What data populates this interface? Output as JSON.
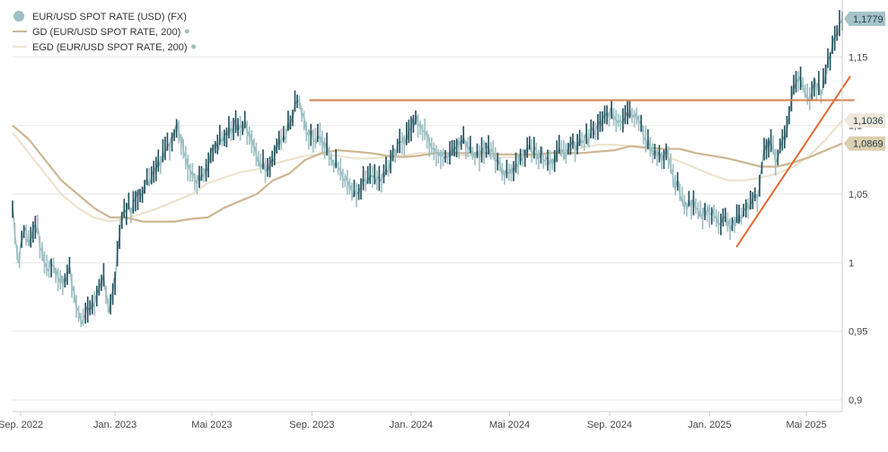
{
  "legend": {
    "items": [
      {
        "label": "EUR/USD SPOT RATE (USD) (FX)",
        "color": "#9dbfc3",
        "marker": "circle"
      },
      {
        "label": "GD (EUR/USD SPOT RATE, 200)",
        "color": "#cdb793",
        "marker": "line",
        "dot_color": "#9dbfc3"
      },
      {
        "label": "EGD (EUR/USD SPOT RATE, 200)",
        "color": "#ece4cf",
        "marker": "line",
        "dot_color": "#9dbfc3"
      }
    ]
  },
  "badges": [
    {
      "label": "1,1779",
      "value": 1.1779,
      "bg": "#a6c4c8",
      "fg": "#1d3b45"
    },
    {
      "label": "1,1036",
      "value": 1.1036,
      "bg": "#efe9da",
      "fg": "#1d3b45"
    },
    {
      "label": "1,0869",
      "value": 1.0869,
      "bg": "#dccfb0",
      "fg": "#1d3b45"
    }
  ],
  "chart_data": {
    "type": "line",
    "xlabel": "",
    "ylabel": "",
    "ylim": [
      0.9,
      1.185
    ],
    "grid": true,
    "legend_position": "top-left",
    "y_ticks": [
      {
        "label": "0,9",
        "value": 0.9
      },
      {
        "label": "0,95",
        "value": 0.95
      },
      {
        "label": "1",
        "value": 1.0
      },
      {
        "label": "1,05",
        "value": 1.05
      },
      {
        "label": "1,1",
        "value": 1.1
      },
      {
        "label": "1,15",
        "value": 1.15
      }
    ],
    "x_ticks": [
      {
        "label": "Sep. 2022",
        "t": 10
      },
      {
        "label": "Jan. 2023",
        "t": 126
      },
      {
        "label": "Mai 2023",
        "t": 245
      },
      {
        "label": "Sep. 2023",
        "t": 368
      },
      {
        "label": "Jan. 2024",
        "t": 490
      },
      {
        "label": "Mai 2024",
        "t": 611
      },
      {
        "label": "Sep. 2024",
        "t": 734
      },
      {
        "label": "Jan. 2025",
        "t": 857
      },
      {
        "label": "Mai 2025",
        "t": 976
      }
    ],
    "x_range": [
      0,
      1020
    ],
    "series": [
      {
        "color": "#9dbfc3",
        "dark_color": "#1f4f5c",
        "points": [
          [
            0,
            1.04
          ],
          [
            7,
            1.0
          ],
          [
            14,
            1.025
          ],
          [
            21,
            1.015
          ],
          [
            28,
            1.03
          ],
          [
            35,
            1.01
          ],
          [
            42,
            0.995
          ],
          [
            49,
            1.0
          ],
          [
            56,
            0.99
          ],
          [
            63,
            0.985
          ],
          [
            70,
            0.995
          ],
          [
            77,
            0.975
          ],
          [
            84,
            0.955
          ],
          [
            91,
            0.965
          ],
          [
            98,
            0.97
          ],
          [
            105,
            0.975
          ],
          [
            112,
            0.99
          ],
          [
            119,
            0.965
          ],
          [
            126,
            0.99
          ],
          [
            133,
            1.03
          ],
          [
            140,
            1.04
          ],
          [
            147,
            1.04
          ],
          [
            154,
            1.05
          ],
          [
            161,
            1.055
          ],
          [
            168,
            1.06
          ],
          [
            175,
            1.07
          ],
          [
            182,
            1.075
          ],
          [
            189,
            1.085
          ],
          [
            196,
            1.09
          ],
          [
            203,
            1.1
          ],
          [
            210,
            1.085
          ],
          [
            217,
            1.07
          ],
          [
            224,
            1.06
          ],
          [
            231,
            1.06
          ],
          [
            238,
            1.065
          ],
          [
            245,
            1.08
          ],
          [
            252,
            1.085
          ],
          [
            259,
            1.09
          ],
          [
            266,
            1.095
          ],
          [
            273,
            1.1
          ],
          [
            280,
            1.1
          ],
          [
            287,
            1.1
          ],
          [
            294,
            1.09
          ],
          [
            301,
            1.075
          ],
          [
            308,
            1.07
          ],
          [
            315,
            1.07
          ],
          [
            322,
            1.08
          ],
          [
            329,
            1.09
          ],
          [
            336,
            1.095
          ],
          [
            343,
            1.105
          ],
          [
            350,
            1.12
          ],
          [
            357,
            1.105
          ],
          [
            364,
            1.095
          ],
          [
            371,
            1.09
          ],
          [
            378,
            1.09
          ],
          [
            385,
            1.085
          ],
          [
            392,
            1.075
          ],
          [
            399,
            1.07
          ],
          [
            406,
            1.065
          ],
          [
            413,
            1.055
          ],
          [
            420,
            1.05
          ],
          [
            427,
            1.055
          ],
          [
            434,
            1.06
          ],
          [
            441,
            1.065
          ],
          [
            448,
            1.06
          ],
          [
            455,
            1.065
          ],
          [
            462,
            1.07
          ],
          [
            469,
            1.08
          ],
          [
            476,
            1.085
          ],
          [
            483,
            1.09
          ],
          [
            490,
            1.1
          ],
          [
            497,
            1.105
          ],
          [
            504,
            1.1
          ],
          [
            511,
            1.09
          ],
          [
            518,
            1.085
          ],
          [
            525,
            1.08
          ],
          [
            532,
            1.075
          ],
          [
            539,
            1.08
          ],
          [
            546,
            1.085
          ],
          [
            553,
            1.09
          ],
          [
            560,
            1.085
          ],
          [
            567,
            1.08
          ],
          [
            574,
            1.08
          ],
          [
            581,
            1.085
          ],
          [
            588,
            1.08
          ],
          [
            595,
            1.075
          ],
          [
            602,
            1.065
          ],
          [
            609,
            1.065
          ],
          [
            616,
            1.07
          ],
          [
            623,
            1.075
          ],
          [
            630,
            1.08
          ],
          [
            637,
            1.085
          ],
          [
            644,
            1.08
          ],
          [
            651,
            1.08
          ],
          [
            658,
            1.075
          ],
          [
            665,
            1.075
          ],
          [
            672,
            1.08
          ],
          [
            679,
            1.08
          ],
          [
            686,
            1.085
          ],
          [
            693,
            1.085
          ],
          [
            700,
            1.09
          ],
          [
            707,
            1.09
          ],
          [
            714,
            1.095
          ],
          [
            721,
            1.1
          ],
          [
            728,
            1.105
          ],
          [
            735,
            1.11
          ],
          [
            742,
            1.105
          ],
          [
            749,
            1.105
          ],
          [
            756,
            1.11
          ],
          [
            763,
            1.11
          ],
          [
            770,
            1.105
          ],
          [
            777,
            1.09
          ],
          [
            784,
            1.085
          ],
          [
            791,
            1.08
          ],
          [
            798,
            1.075
          ],
          [
            805,
            1.08
          ],
          [
            812,
            1.06
          ],
          [
            819,
            1.055
          ],
          [
            826,
            1.04
          ],
          [
            833,
            1.045
          ],
          [
            840,
            1.04
          ],
          [
            847,
            1.035
          ],
          [
            854,
            1.04
          ],
          [
            861,
            1.035
          ],
          [
            868,
            1.03
          ],
          [
            875,
            1.035
          ],
          [
            882,
            1.025
          ],
          [
            889,
            1.03
          ],
          [
            896,
            1.035
          ],
          [
            903,
            1.04
          ],
          [
            910,
            1.045
          ],
          [
            917,
            1.05
          ],
          [
            924,
            1.08
          ],
          [
            931,
            1.09
          ],
          [
            938,
            1.075
          ],
          [
            945,
            1.085
          ],
          [
            952,
            1.095
          ],
          [
            959,
            1.125
          ],
          [
            966,
            1.135
          ],
          [
            973,
            1.125
          ],
          [
            980,
            1.12
          ],
          [
            987,
            1.13
          ],
          [
            994,
            1.125
          ],
          [
            1001,
            1.14
          ],
          [
            1008,
            1.16
          ],
          [
            1015,
            1.17
          ],
          [
            1020,
            1.1779
          ]
        ]
      },
      {
        "color": "#cdb793",
        "points": [
          [
            0,
            1.1
          ],
          [
            20,
            1.09
          ],
          [
            40,
            1.075
          ],
          [
            60,
            1.06
          ],
          [
            80,
            1.05
          ],
          [
            100,
            1.04
          ],
          [
            120,
            1.033
          ],
          [
            140,
            1.033
          ],
          [
            160,
            1.03
          ],
          [
            180,
            1.03
          ],
          [
            200,
            1.03
          ],
          [
            220,
            1.032
          ],
          [
            240,
            1.033
          ],
          [
            260,
            1.04
          ],
          [
            280,
            1.045
          ],
          [
            300,
            1.05
          ],
          [
            320,
            1.06
          ],
          [
            340,
            1.065
          ],
          [
            360,
            1.075
          ],
          [
            380,
            1.08
          ],
          [
            400,
            1.082
          ],
          [
            420,
            1.081
          ],
          [
            440,
            1.08
          ],
          [
            460,
            1.078
          ],
          [
            480,
            1.077
          ],
          [
            500,
            1.078
          ],
          [
            520,
            1.08
          ],
          [
            540,
            1.08
          ],
          [
            560,
            1.08
          ],
          [
            580,
            1.08
          ],
          [
            600,
            1.079
          ],
          [
            620,
            1.079
          ],
          [
            640,
            1.079
          ],
          [
            660,
            1.08
          ],
          [
            680,
            1.08
          ],
          [
            700,
            1.08
          ],
          [
            720,
            1.081
          ],
          [
            740,
            1.082
          ],
          [
            760,
            1.085
          ],
          [
            780,
            1.084
          ],
          [
            800,
            1.083
          ],
          [
            820,
            1.083
          ],
          [
            840,
            1.08
          ],
          [
            860,
            1.078
          ],
          [
            880,
            1.076
          ],
          [
            900,
            1.073
          ],
          [
            920,
            1.07
          ],
          [
            940,
            1.07
          ],
          [
            960,
            1.073
          ],
          [
            980,
            1.077
          ],
          [
            1000,
            1.082
          ],
          [
            1020,
            1.0869
          ]
        ]
      },
      {
        "color": "#ece4cf",
        "points": [
          [
            0,
            1.095
          ],
          [
            20,
            1.08
          ],
          [
            40,
            1.065
          ],
          [
            60,
            1.05
          ],
          [
            80,
            1.04
          ],
          [
            100,
            1.033
          ],
          [
            120,
            1.03
          ],
          [
            140,
            1.032
          ],
          [
            160,
            1.036
          ],
          [
            180,
            1.04
          ],
          [
            200,
            1.045
          ],
          [
            220,
            1.05
          ],
          [
            240,
            1.058
          ],
          [
            260,
            1.062
          ],
          [
            280,
            1.066
          ],
          [
            300,
            1.068
          ],
          [
            320,
            1.072
          ],
          [
            340,
            1.075
          ],
          [
            360,
            1.078
          ],
          [
            380,
            1.079
          ],
          [
            400,
            1.078
          ],
          [
            420,
            1.076
          ],
          [
            440,
            1.076
          ],
          [
            460,
            1.077
          ],
          [
            480,
            1.078
          ],
          [
            500,
            1.08
          ],
          [
            520,
            1.08
          ],
          [
            540,
            1.079
          ],
          [
            560,
            1.078
          ],
          [
            580,
            1.078
          ],
          [
            600,
            1.077
          ],
          [
            620,
            1.077
          ],
          [
            640,
            1.078
          ],
          [
            660,
            1.08
          ],
          [
            680,
            1.082
          ],
          [
            700,
            1.084
          ],
          [
            720,
            1.086
          ],
          [
            740,
            1.086
          ],
          [
            760,
            1.085
          ],
          [
            780,
            1.083
          ],
          [
            800,
            1.078
          ],
          [
            820,
            1.074
          ],
          [
            840,
            1.069
          ],
          [
            860,
            1.064
          ],
          [
            880,
            1.06
          ],
          [
            900,
            1.06
          ],
          [
            920,
            1.062
          ],
          [
            940,
            1.065
          ],
          [
            960,
            1.07
          ],
          [
            980,
            1.078
          ],
          [
            1000,
            1.09
          ],
          [
            1020,
            1.1036
          ]
        ]
      }
    ],
    "annotations": [
      {
        "kind": "horizontal_line",
        "y": 1.1185,
        "x_from": 365,
        "x_to": 1035,
        "color": "#d4824e"
      },
      {
        "kind": "trend_line",
        "from": [
          890,
          1.0115
        ],
        "to": [
          1030,
          1.136
        ],
        "color": "#e06a32"
      }
    ]
  }
}
